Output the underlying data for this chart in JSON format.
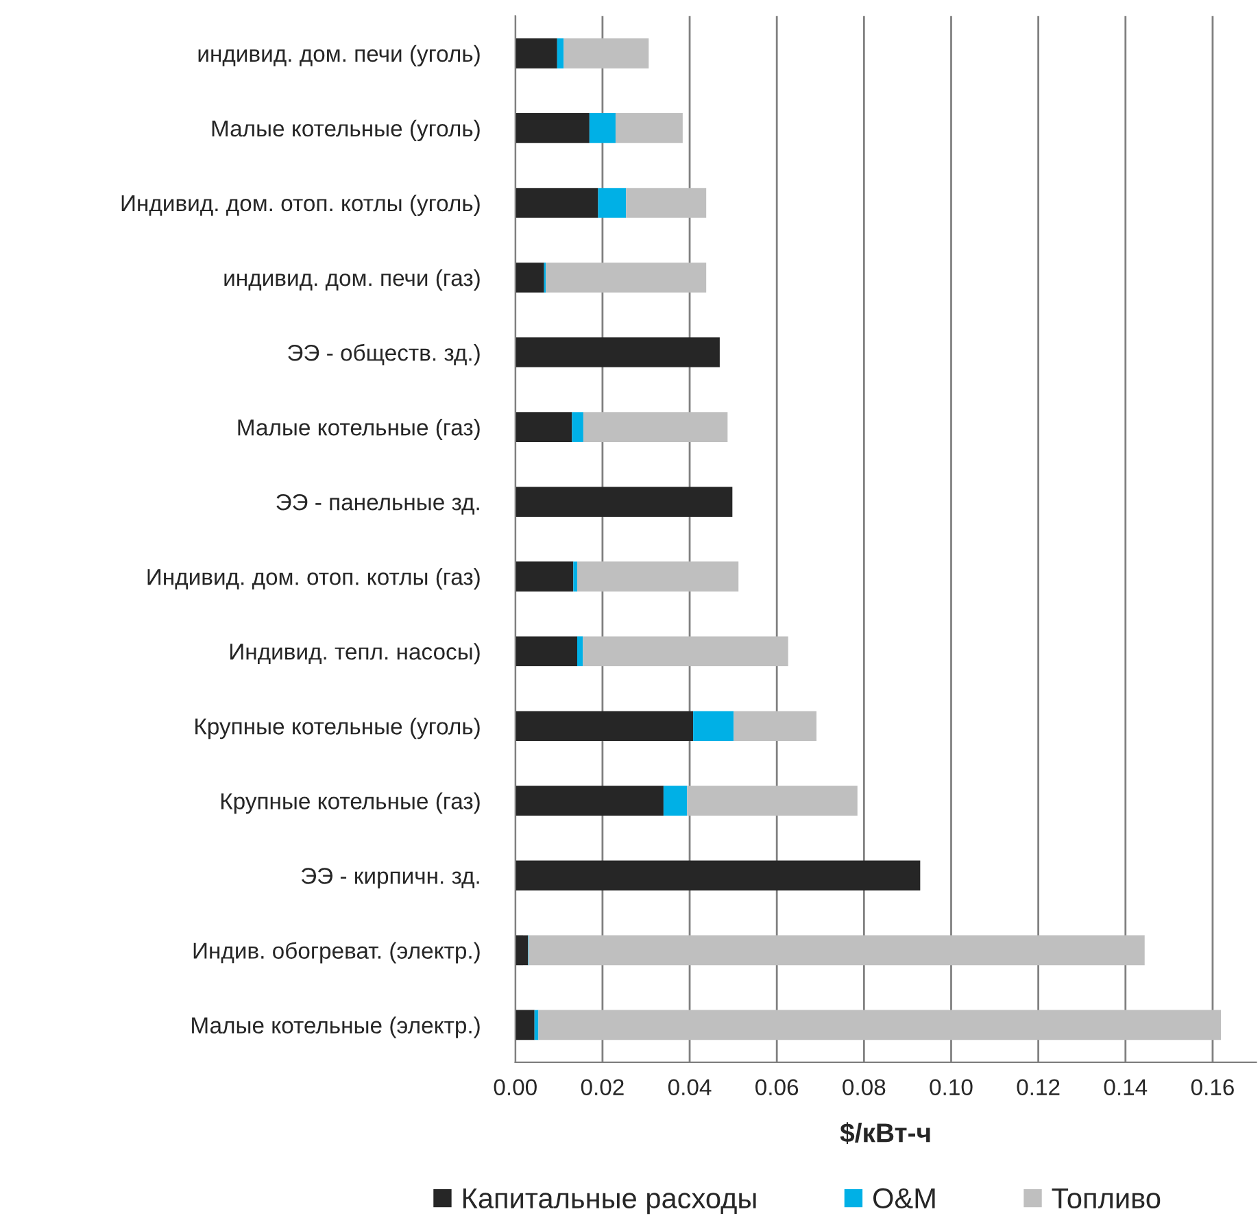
{
  "chart_data": {
    "type": "bar",
    "orientation": "horizontal",
    "stacked": true,
    "xlabel": "$/кВт-ч",
    "categories": [
      "индивид. дом. печи (уголь)",
      "Малые котельные (уголь)",
      "Индивид. дом. отоп. котлы (уголь)",
      "индивид. дом. печи (газ)",
      "ЭЭ - обществ. зд.)",
      "Малые котельные (газ)",
      "ЭЭ - панельные зд.",
      "Индивид. дом. отоп. котлы (газ)",
      "Индивид. тепл. насосы)",
      "Крупные котельные (уголь)",
      "Крупные котельные (газ)",
      "ЭЭ - кирпичн. зд.",
      "Индив. обогреват. (электр.)",
      "Малые котельные (электр.)"
    ],
    "series": [
      {
        "name": "Капитальные расходы",
        "color": "#262626",
        "values": [
          0.0096,
          0.017,
          0.019,
          0.0066,
          0.0469,
          0.013,
          0.0498,
          0.0133,
          0.0142,
          0.0408,
          0.034,
          0.0929,
          0.0029,
          0.0044
        ]
      },
      {
        "name": "O&M",
        "color": "#00b0e6",
        "values": [
          0.0015,
          0.006,
          0.0064,
          0.0004,
          null,
          0.0026,
          null,
          0.0009,
          0.0013,
          0.0093,
          0.0054,
          null,
          0.0001,
          0.0009
        ]
      },
      {
        "name": "Топливо",
        "color": "#bfbfbf",
        "values": [
          0.0195,
          0.0154,
          0.0184,
          0.0368,
          null,
          0.0331,
          null,
          0.037,
          0.0471,
          0.019,
          0.0391,
          null,
          0.1414,
          0.1566
        ]
      }
    ],
    "xlim": [
      0,
      0.17
    ],
    "xticks": [
      {
        "value": 0,
        "label": "0.00"
      },
      {
        "value": 0.02,
        "label": "0.02"
      },
      {
        "value": 0.04,
        "label": "0.04"
      },
      {
        "value": 0.06,
        "label": "0.06"
      },
      {
        "value": 0.08,
        "label": "0.08"
      },
      {
        "value": 0.1,
        "label": "0.10"
      },
      {
        "value": 0.12,
        "label": "0.12"
      },
      {
        "value": 0.14,
        "label": "0.14"
      },
      {
        "value": 0.16,
        "label": "0.16"
      }
    ],
    "grid": "x",
    "legend": "bottom"
  }
}
